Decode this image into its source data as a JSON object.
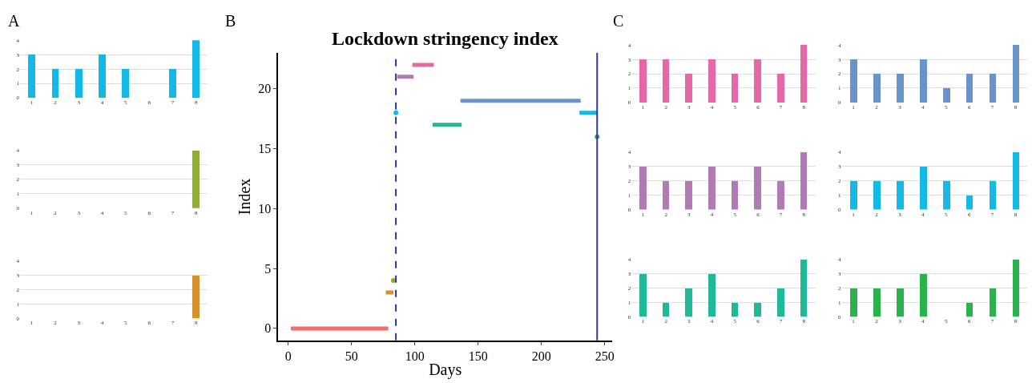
{
  "chart_data": [
    {
      "type": "bar",
      "annotations": [
        "A"
      ],
      "categories": [
        "1",
        "2",
        "3",
        "4",
        "5",
        "6",
        "7",
        "8"
      ],
      "values": [
        3,
        2,
        2,
        3,
        2,
        0,
        2,
        4
      ],
      "color": "#13b9e6",
      "ylim": [
        0,
        4
      ],
      "yticks": [
        0,
        1,
        2,
        3,
        4
      ],
      "grid": "y"
    },
    {
      "type": "bar",
      "categories": [
        "1",
        "2",
        "3",
        "4",
        "5",
        "6",
        "7",
        "8"
      ],
      "values": [
        0,
        0,
        0,
        0,
        0,
        0,
        0,
        4
      ],
      "color": "#8fac3a",
      "ylim": [
        0,
        4
      ],
      "yticks": [
        0,
        1,
        2,
        3,
        4
      ],
      "grid": "y"
    },
    {
      "type": "bar",
      "categories": [
        "1",
        "2",
        "3",
        "4",
        "5",
        "6",
        "7",
        "8"
      ],
      "values": [
        0,
        0,
        0,
        0,
        0,
        0,
        0,
        3
      ],
      "color": "#d4902a",
      "ylim": [
        0,
        4
      ],
      "yticks": [
        0,
        1,
        2,
        3,
        4
      ],
      "grid": "y"
    },
    {
      "type": "line",
      "title": "Lockdown stringency index",
      "annotations": [
        "B"
      ],
      "xlabel": "Days",
      "ylabel": "Index",
      "xlim": [
        -8,
        256
      ],
      "xticks": [
        0,
        50,
        100,
        150,
        200,
        250
      ],
      "ylim": [
        -1,
        23
      ],
      "yticks": [
        0,
        5,
        10,
        15,
        20
      ],
      "grid": false,
      "series": [
        {
          "color": "#f2706b",
          "x": [
            2,
            79
          ],
          "values": [
            0,
            0
          ]
        },
        {
          "color": "#d4902a",
          "x": [
            77,
            83
          ],
          "values": [
            3,
            3
          ]
        },
        {
          "type": "scatter",
          "color": "#8fac3a",
          "x": [
            83
          ],
          "values": [
            4
          ]
        },
        {
          "type": "scatter",
          "color": "#15b9e6",
          "x": [
            85
          ],
          "values": [
            18
          ]
        },
        {
          "color": "#b07ab5",
          "x": [
            86,
            99
          ],
          "values": [
            21,
            21
          ]
        },
        {
          "color": "#e667a6",
          "x": [
            98,
            115
          ],
          "values": [
            22,
            22
          ]
        },
        {
          "color": "#1fb99a",
          "x": [
            114,
            137
          ],
          "values": [
            17,
            17
          ]
        },
        {
          "color": "#6a93cc",
          "x": [
            136,
            231
          ],
          "values": [
            19,
            19
          ]
        },
        {
          "color": "#15b9e6",
          "x": [
            230,
            244
          ],
          "values": [
            18,
            18
          ]
        },
        {
          "type": "scatter",
          "color": "#2ab24c",
          "x": [
            244
          ],
          "values": [
            16
          ]
        }
      ],
      "ref_lines": [
        {
          "axis": "x",
          "value": 85,
          "color": "#2b3a8f",
          "line_style": "dashed"
        },
        {
          "axis": "x",
          "value": 244,
          "color": "#2b3a8f",
          "line_style": "solid"
        }
      ]
    },
    {
      "type": "bar",
      "annotations": [
        "C"
      ],
      "categories": [
        "1",
        "2",
        "3",
        "4",
        "5",
        "6",
        "7",
        "8"
      ],
      "values": [
        3,
        3,
        2,
        3,
        2,
        3,
        2,
        4
      ],
      "color": "#e667a6",
      "ylim": [
        0,
        4
      ],
      "yticks": [
        0,
        1,
        2,
        3,
        4
      ],
      "grid": "y"
    },
    {
      "type": "bar",
      "categories": [
        "1",
        "2",
        "3",
        "4",
        "5",
        "6",
        "7",
        "8"
      ],
      "values": [
        3,
        2,
        2,
        3,
        1,
        2,
        2,
        4
      ],
      "color": "#6a93cc",
      "ylim": [
        0,
        4
      ],
      "yticks": [
        0,
        1,
        2,
        3,
        4
      ],
      "grid": "y"
    },
    {
      "type": "bar",
      "categories": [
        "1",
        "2",
        "3",
        "4",
        "5",
        "6",
        "7",
        "8"
      ],
      "values": [
        3,
        2,
        2,
        3,
        2,
        3,
        2,
        4
      ],
      "color": "#b07ab5",
      "ylim": [
        0,
        4
      ],
      "yticks": [
        0,
        1,
        2,
        3,
        4
      ],
      "grid": "y"
    },
    {
      "type": "bar",
      "categories": [
        "1",
        "2",
        "3",
        "4",
        "5",
        "6",
        "7",
        "8"
      ],
      "values": [
        2,
        2,
        2,
        3,
        2,
        1,
        2,
        4
      ],
      "color": "#15b9e6",
      "ylim": [
        0,
        4
      ],
      "yticks": [
        0,
        1,
        2,
        3,
        4
      ],
      "grid": "y"
    },
    {
      "type": "bar",
      "categories": [
        "1",
        "2",
        "3",
        "4",
        "5",
        "6",
        "7",
        "8"
      ],
      "values": [
        3,
        1,
        2,
        3,
        1,
        1,
        2,
        4
      ],
      "color": "#1fb99a",
      "ylim": [
        0,
        4
      ],
      "yticks": [
        0,
        1,
        2,
        3,
        4
      ],
      "grid": "y"
    },
    {
      "type": "bar",
      "categories": [
        "1",
        "2",
        "3",
        "4",
        "5",
        "6",
        "7",
        "8"
      ],
      "values": [
        2,
        2,
        2,
        3,
        0,
        1,
        2,
        4
      ],
      "color": "#2ab24c",
      "ylim": [
        0,
        4
      ],
      "yticks": [
        0,
        1,
        2,
        3,
        4
      ],
      "grid": "y"
    }
  ]
}
